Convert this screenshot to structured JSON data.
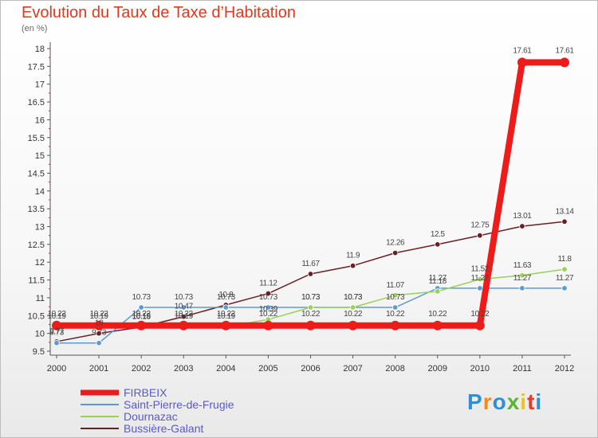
{
  "header": {
    "title": "Evolution du Taux de Taxe d’Habitation",
    "subtitle": "(en %)"
  },
  "logo": {
    "text": "Proxiti",
    "colors": [
      "#2f8fd6",
      "#f08a1c",
      "#2f8fd6",
      "#5ab532",
      "#f0c21c",
      "#e53b2a",
      "#2f8fd6"
    ]
  },
  "chart_data": {
    "type": "line",
    "x": [
      2000,
      2001,
      2002,
      2003,
      2004,
      2005,
      2006,
      2007,
      2008,
      2009,
      2010,
      2011,
      2012
    ],
    "ylim": [
      9.5,
      18
    ],
    "yticks": [
      9.5,
      10,
      10.5,
      11,
      11.5,
      12,
      12.5,
      13,
      13.5,
      14,
      14.5,
      15,
      15.5,
      16,
      16.5,
      17,
      17.5,
      18
    ],
    "ytick_labels": [
      "9.5",
      "10",
      "10.5",
      "11",
      "11.5",
      "12",
      "12.5",
      "13",
      "13.5",
      "14",
      "14.5",
      "15",
      "15.5",
      "16",
      "16.5",
      "17",
      "17.5",
      "18"
    ],
    "grid": false,
    "legend_position": "bottom-left",
    "series": [
      {
        "name": "Bussière-Galant",
        "color": "#6b1f22",
        "values": [
          9.77,
          10.0,
          10.18,
          10.47,
          10.8,
          11.12,
          11.67,
          11.9,
          12.26,
          12.5,
          12.75,
          13.01,
          13.14
        ],
        "labels": [
          "9.77",
          "10",
          "10.18",
          "10.47",
          "10.8",
          "11.12",
          "11.67",
          "11.9",
          "12.26",
          "12.5",
          "12.75",
          "13.01",
          "13.14"
        ]
      },
      {
        "name": "Saint-Pierre-de-Frugie",
        "color": "#5b9bd5",
        "values": [
          9.73,
          9.73,
          10.73,
          10.73,
          10.73,
          10.73,
          10.73,
          10.73,
          10.73,
          11.27,
          11.27,
          11.27,
          11.27
        ],
        "labels": [
          "9.73",
          "9.73",
          "10.73",
          "10.73",
          "10.73",
          "10.73",
          "10.73",
          "10.73",
          "10.73",
          "11.27",
          "11.27",
          "11.27",
          "11.27"
        ]
      },
      {
        "name": "Dournazac",
        "color": "#9ad05a",
        "values": [
          10.19,
          10.19,
          10.19,
          10.19,
          10.19,
          10.39,
          10.73,
          10.73,
          11.07,
          11.18,
          11.52,
          11.63,
          11.8
        ],
        "labels": [
          "10.19",
          "10.19",
          "10.19",
          "10.19",
          "10.19",
          "10.39",
          "10.73",
          "10.73",
          "11.07",
          "11.18",
          "11.52",
          "11.63",
          "11.8"
        ]
      },
      {
        "name": "FIRBEIX",
        "color": "#ee1b1b",
        "values": [
          10.22,
          10.22,
          10.22,
          10.22,
          10.22,
          10.22,
          10.22,
          10.22,
          10.22,
          10.22,
          10.22,
          17.61,
          17.61
        ],
        "labels": [
          "10.22",
          "10.22",
          "10.22",
          "10.22",
          "10.22",
          "10.22",
          "10.22",
          "10.22",
          "10.22",
          "10.22",
          "10.22",
          "17.61",
          "17.61"
        ]
      }
    ],
    "legend_order": [
      "FIRBEIX",
      "Saint-Pierre-de-Frugie",
      "Dournazac",
      "Bussière-Galant"
    ]
  }
}
